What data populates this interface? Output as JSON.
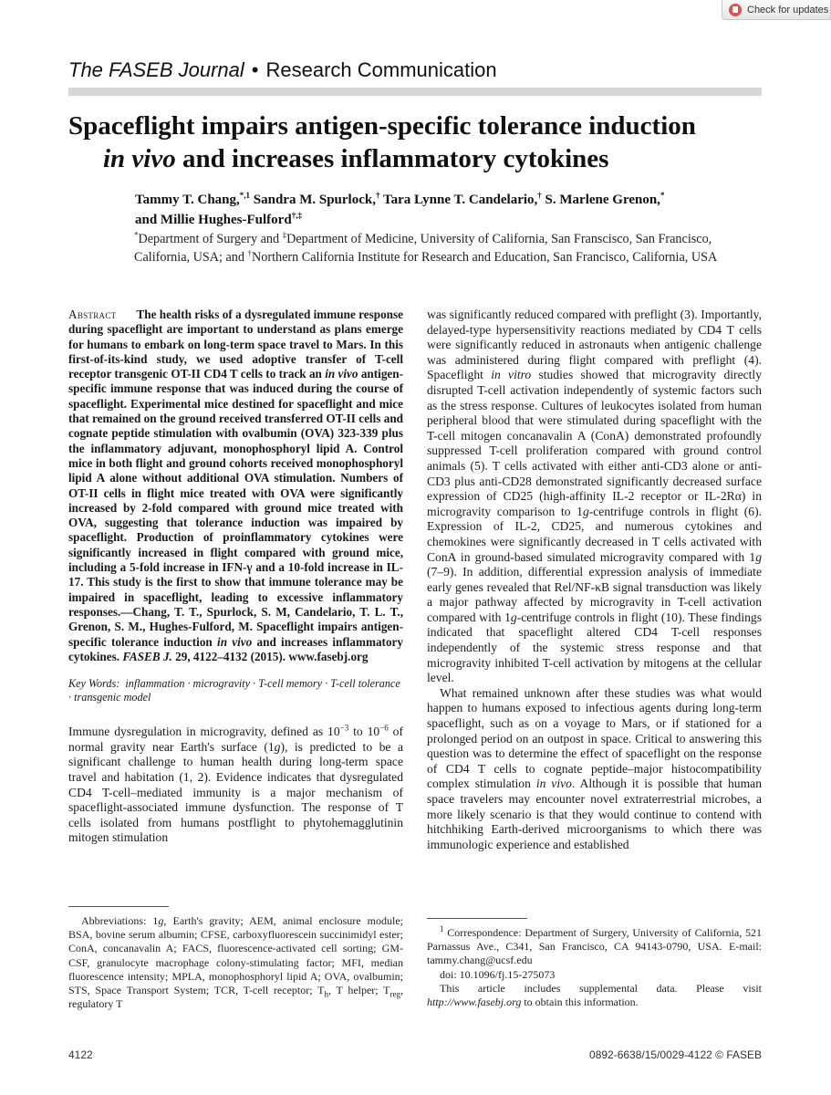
{
  "badge": {
    "label": "Check for updates"
  },
  "header": {
    "journal": "The FASEB Journal",
    "bullet": "•",
    "section": "Research Communication"
  },
  "title": {
    "line1": "Spaceflight impairs antigen-specific tolerance induction",
    "line2_italic": "in vivo",
    "line2_rest": " and increases inflammatory cytokines"
  },
  "authors": {
    "a1": "Tammy T. Chang,",
    "a1_sup": "*,1",
    "a2": " Sandra M. Spurlock,",
    "a2_sup": "†",
    "a3": " Tara Lynne T. Candelario,",
    "a3_sup": "†",
    "a4": " S. Marlene Grenon,",
    "a4_sup": "*",
    "a5": "and Millie Hughes-Fulford",
    "a5_sup": "†,‡"
  },
  "affiliations": {
    "s1": "*",
    "t1": "Department of Surgery and ",
    "s2": "‡",
    "t2": "Department of Medicine, University of California, San Franscisco, San Francisco, California, USA; and ",
    "s3": "†",
    "t3": "Northern California Institute for Research and Education, San Francisco, California, USA"
  },
  "abstract": {
    "label": "Abstract",
    "p1": "The health risks of a dysregulated immune response during spaceflight are important to understand as plans emerge for humans to embark on long-term space travel to Mars. In this first-of-its-kind study, we used adoptive transfer of T-cell receptor transgenic OT-II CD4 T cells to track an ",
    "p1_it": "in vivo",
    "p2": " antigen-specific immune response that was induced during the course of spaceflight. Experimental mice destined for spaceflight and mice that remained on the ground received transferred OT-II cells and cognate peptide stimulation with ovalbumin (OVA) 323-339 plus the inflammatory adjuvant, monophosphoryl lipid A. Control mice in both flight and ground cohorts received monophosphoryl lipid A alone without additional OVA stimulation. Numbers of OT-II cells in flight mice treated with OVA were significantly increased by 2-fold compared with ground mice treated with OVA, suggesting that tolerance induction was impaired by spaceflight. Production of proinflammatory cytokines were significantly increased in flight compared with ground mice, including a 5-fold increase in IFN-γ and a 10-fold increase in IL-17. This study is the first to show that immune tolerance may be impaired in spaceflight, leading to excessive inflammatory responses.—Chang, T. T., Spurlock, S. M, Candelario, T. L. T., Grenon, S. M., Hughes-Fulford, M. Spaceflight impairs antigen-specific tolerance induction ",
    "p2_it": "in vivo",
    "p3": " and increases inflammatory cytokines. ",
    "journal_it": "FASEB J.",
    "cite": " 29, 4122–4132 (2015). www.fasebj.org"
  },
  "keywords": {
    "label": "Key Words:",
    "items": "inflammation · microgravity · T-cell memory · T-cell tolerance · transgenic model"
  },
  "intro": {
    "t1": "Immune dysregulation in microgravity, defined as 10",
    "e1": "−3",
    "t2": " to 10",
    "e2": "−6",
    "t3": " of normal gravity near Earth's surface (1",
    "g1": "g",
    "t4": "), is predicted to be a significant challenge to human health during long-term space travel and habitation (1, 2). Evidence indicates that dysregulated CD4 T-cell–mediated immunity is a major mechanism of spaceflight-associated immune dysfunction. The response of T cells isolated from humans postflight to phytohemagglutinin mitogen stimulation"
  },
  "right": {
    "r1": "was significantly reduced compared with preflight (3). Importantly, delayed-type hypersensitivity reactions mediated by CD4 T cells were significantly reduced in astronauts when antigenic challenge was administered during flight compared with preflight (4). Spaceflight ",
    "r1_it": "in vitro",
    "r2": " studies showed that microgravity directly disrupted T-cell activation independently of systemic factors such as the stress response. Cultures of leukocytes isolated from human peripheral blood that were stimulated during spaceflight with the T-cell mitogen concanavalin A (ConA) demonstrated profoundly suppressed T-cell proliferation compared with ground control animals (5). T cells activated with either anti-CD3 alone or anti-CD3 plus anti-CD28 demonstrated significantly decreased surface expression of CD25 (high-affinity IL-2 receptor or IL-2Rα) in microgravity comparison to 1",
    "r2_g": "g",
    "r3": "-centrifuge controls in flight (6). Expression of IL-2, CD25, and numerous cytokines and chemokines were significantly decreased in T cells activated with ConA in ground-based simulated microgravity compared with 1",
    "r3_g": "g",
    "r4": " (7–9). In addition, differential expression analysis of immediate early genes revealed that Rel/NF-κB signal transduction was likely a major pathway affected by microgravity in T-cell activation compared with 1",
    "r4_g": "g",
    "r5": "-centrifuge controls in flight (10). These findings indicated that spaceflight altered CD4 T-cell responses independently of the systemic stress response and that microgravity inhibited T-cell activation by mitogens at the cellular level.",
    "p2a": "What remained unknown after these studies was what would happen to humans exposed to infectious agents during long-term spaceflight, such as on a voyage to Mars, or if stationed for a prolonged period on an outpost in space. Critical to answering this question was to determine the effect of spaceflight on the response of CD4 T cells to cognate peptide–major histocompatibility complex stimulation ",
    "p2_it": "in vivo",
    "p2b": ". Although it is possible that human space travelers may encounter novel extraterrestrial microbes, a more likely scenario is that they would continue to contend with hitchhiking Earth-derived microorganisms to which there was immunologic experience and established"
  },
  "abbrev": {
    "a1": "Abbreviations: 1",
    "a1_g": "g",
    "a2": ", Earth's gravity; AEM, animal enclosure module; BSA, bovine serum albumin; CFSE, carboxyfluorescein succinimidyl ester; ConA, concanavalin A; FACS, fluorescence-activated cell sorting; GM-CSF, granulocyte macrophage colony-stimulating factor; MFI, median fluorescence intensity; MPLA, monophosphoryl lipid A; OVA, ovalbumin; STS, Space Transport System; TCR, T-cell receptor; T",
    "sub_h": "h",
    "a3": ", T helper; T",
    "sub_reg": "reg",
    "a4": ", regulatory T"
  },
  "correspondence": {
    "sup": "1",
    "text": " Correspondence: Department of Surgery, University of California, 521 Parnassus Ave., C341, San Francisco, CA 94143-0790, USA. E-mail: tammy.chang@ucsf.edu",
    "doi": "doi: 10.1096/fj.15-275073",
    "supp1": "This article includes supplemental data. Please visit ",
    "supp_link": "http://www.fasebj.org",
    "supp2": " to obtain this information."
  },
  "footer": {
    "page": "4122",
    "issn": "0892-6638/15/0029-4122 © FASEB"
  }
}
